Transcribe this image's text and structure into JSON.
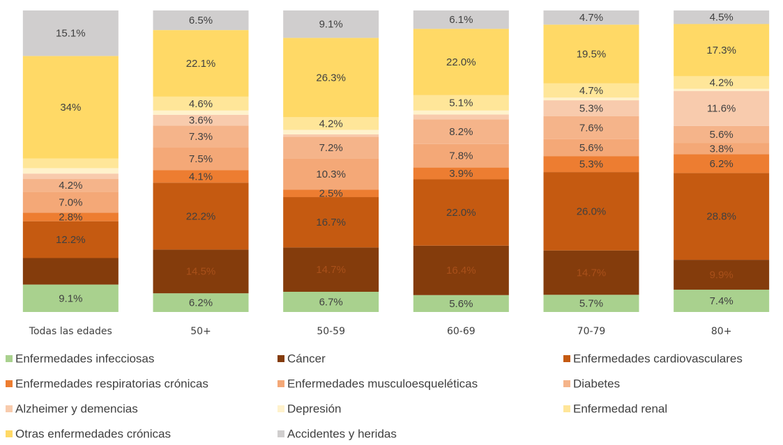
{
  "chart_data": {
    "type": "stacked_bar",
    "categories": [
      "Todas las edades",
      "50+",
      "50-59",
      "60-69",
      "70-79",
      "80+"
    ],
    "ylim": [
      0,
      100
    ],
    "series": [
      {
        "name": "Enfermedades infecciosas",
        "color": "#a9d18e",
        "values": [
          9.1,
          6.2,
          6.7,
          5.6,
          5.7,
          7.4
        ],
        "value_labels": [
          "9.1%",
          "6.2%",
          "6.7%",
          "5.6%",
          "5.7%",
          "7.4%"
        ]
      },
      {
        "name": "Cáncer",
        "color": "#843c0c",
        "values": [
          8.8,
          14.5,
          14.7,
          16.4,
          14.7,
          9.9
        ],
        "value_labels": [
          null,
          "14.5%",
          "14.7%",
          "16.4%",
          "14.7%",
          "9.9%"
        ]
      },
      {
        "name": "Enfermedades cardiovasculares",
        "color": "#c55a11",
        "values": [
          12.2,
          22.2,
          16.7,
          22.0,
          26.0,
          28.8
        ],
        "value_labels": [
          "12.2%",
          "22.2%",
          "16.7%",
          "22.0%",
          "26.0%",
          "28.8%"
        ]
      },
      {
        "name": "Enfermedades respiratorias crónicas",
        "color": "#ed7d31",
        "values": [
          2.8,
          4.1,
          2.5,
          3.9,
          5.3,
          6.2
        ],
        "value_labels": [
          "2.8%",
          "4.1%",
          "2.5%",
          "3.9%",
          "5.3%",
          "6.2%"
        ]
      },
      {
        "name": "Enfermedades musculoesqueléticas",
        "color": "#f4a877",
        "values": [
          7.0,
          7.5,
          10.3,
          7.8,
          5.6,
          3.8
        ],
        "value_labels": [
          "7.0%",
          "7.5%",
          "10.3%",
          "7.8%",
          "5.6%",
          "3.8%"
        ]
      },
      {
        "name": "Diabetes",
        "color": "#f5b48a",
        "values": [
          4.2,
          7.3,
          7.2,
          8.2,
          7.6,
          5.6
        ],
        "value_labels": [
          "4.2%",
          "7.3%",
          "7.2%",
          "8.2%",
          "7.6%",
          "5.6%"
        ]
      },
      {
        "name": "Alzheimer y demencias",
        "color": "#f8cbad",
        "values": [
          1.8,
          3.6,
          0.8,
          1.6,
          5.3,
          11.6
        ],
        "value_labels": [
          null,
          "3.6%",
          null,
          null,
          "5.3%",
          "11.6%"
        ]
      },
      {
        "name": "Depresión",
        "color": "#fff2cc",
        "values": [
          1.8,
          1.4,
          1.5,
          1.3,
          0.9,
          0.7
        ],
        "value_labels": [
          null,
          null,
          null,
          null,
          null,
          null
        ]
      },
      {
        "name": "Enfermedad renal",
        "color": "#ffe699",
        "values": [
          3.2,
          4.6,
          4.2,
          5.1,
          4.7,
          4.2
        ],
        "value_labels": [
          null,
          "4.6%",
          "4.2%",
          "5.1%",
          "4.7%",
          "4.2%"
        ]
      },
      {
        "name": "Otras enfermedades crónicas",
        "color": "#ffd966",
        "values": [
          34,
          22.1,
          26.3,
          22.0,
          19.5,
          17.3
        ],
        "value_labels": [
          "34%",
          "22.1%",
          "26.3%",
          "22.0%",
          "19.5%",
          "17.3%"
        ]
      },
      {
        "name": "Accidentes y heridas",
        "color": "#d0cece",
        "values": [
          15.1,
          6.5,
          9.1,
          6.1,
          4.7,
          4.5
        ],
        "value_labels": [
          "15.1%",
          "6.5%",
          "9.1%",
          "6.1%",
          "4.7%",
          "4.5%"
        ]
      }
    ]
  }
}
